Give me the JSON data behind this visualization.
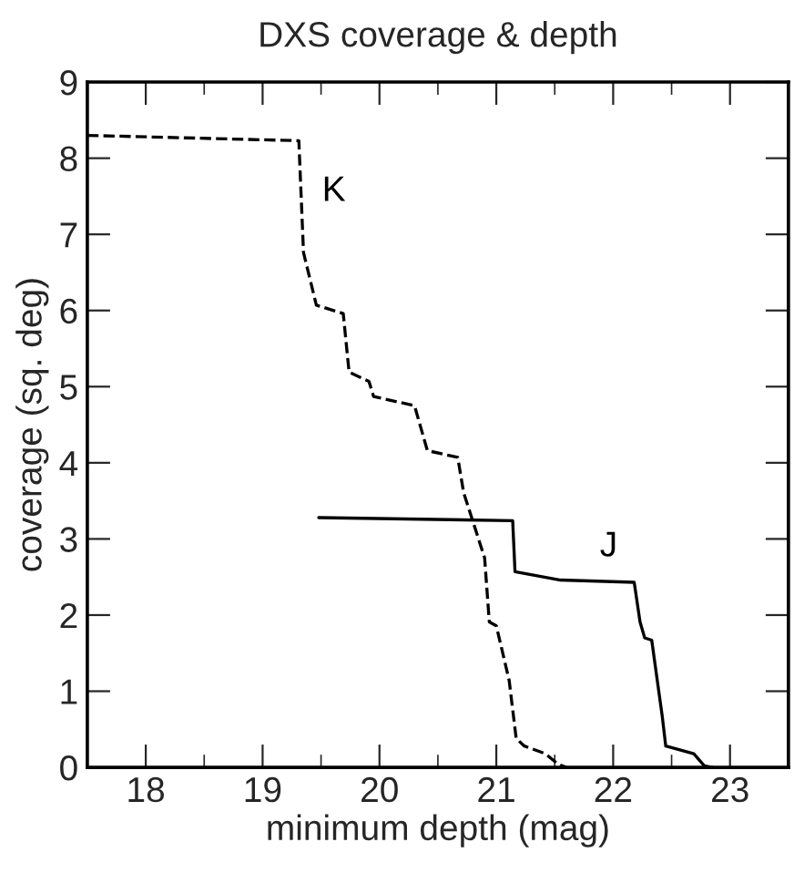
{
  "chart_data": {
    "type": "line",
    "title": "DXS coverage & depth",
    "xlabel": "minimum depth (mag)",
    "ylabel": "coverage (sq. deg)",
    "xlim": [
      17.5,
      23.5
    ],
    "xticks": [
      18,
      19,
      20,
      21,
      22,
      23
    ],
    "ylim": [
      0,
      9
    ],
    "yticks": [
      0,
      1,
      2,
      3,
      4,
      5,
      6,
      7,
      8,
      9
    ],
    "grid": false,
    "marker": "none",
    "series": [
      {
        "name": "K",
        "color": "#000000",
        "line_style": "dashed",
        "x": [
          17.5,
          19.31,
          19.35,
          19.46,
          19.69,
          19.74,
          19.91,
          19.95,
          20.3,
          20.41,
          20.67,
          20.72,
          20.9,
          20.94,
          21.0,
          21.11,
          21.17,
          21.24,
          21.42,
          21.53,
          21.6
        ],
        "values": [
          8.3,
          8.23,
          6.76,
          6.07,
          5.96,
          5.19,
          5.07,
          4.87,
          4.75,
          4.16,
          4.07,
          3.61,
          2.75,
          1.91,
          1.86,
          1.14,
          0.38,
          0.28,
          0.18,
          0.04,
          0
        ]
      },
      {
        "name": "J",
        "color": "#000000",
        "line_style": "solid",
        "x": [
          19.48,
          21.14,
          21.16,
          21.55,
          22.18,
          22.23,
          22.27,
          22.33,
          22.42,
          22.45,
          22.69,
          22.78,
          22.85
        ],
        "values": [
          3.28,
          3.24,
          2.57,
          2.46,
          2.43,
          1.91,
          1.7,
          1.67,
          0.67,
          0.28,
          0.18,
          0.02,
          0
        ]
      }
    ]
  }
}
